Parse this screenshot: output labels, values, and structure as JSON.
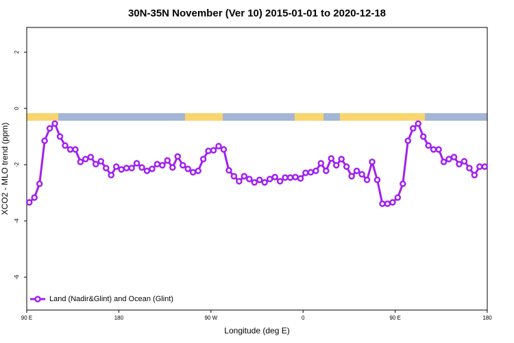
{
  "chart_data": {
    "type": "line",
    "title": "30N-35N November (Ver 10)   2015-01-01 to 2020-12-18",
    "x_label": "Longitude (deg E)",
    "y_label": "XCO2 - MLO trend (ppm)",
    "xlim": [
      90,
      540
    ],
    "ylim": [
      -7.17,
      2.88
    ],
    "xticks": [
      {
        "value": 90,
        "label": "90 E"
      },
      {
        "value": 180,
        "label": "180"
      },
      {
        "value": 270,
        "label": "90 W"
      },
      {
        "value": 360,
        "label": "0"
      },
      {
        "value": 450,
        "label": "90 E"
      },
      {
        "value": 540,
        "label": "180"
      }
    ],
    "yticks": [
      2,
      0,
      -2,
      -4,
      -6
    ],
    "legend": "bottomleft",
    "x": [
      92.5,
      97.5,
      102.5,
      107.5,
      112.5,
      117.5,
      122.5,
      127.5,
      132.5,
      137.5,
      142.5,
      147.5,
      152.5,
      157.5,
      162.5,
      167.5,
      172.5,
      177.5,
      182.5,
      187.5,
      192.5,
      197.5,
      202.5,
      207.5,
      212.5,
      217.5,
      222.5,
      227.5,
      232.5,
      237.5,
      242.5,
      247.5,
      252.5,
      257.5,
      262.5,
      267.5,
      272.5,
      277.5,
      282.5,
      287.5,
      292.5,
      297.5,
      302.5,
      307.5,
      312.5,
      317.5,
      322.5,
      327.5,
      332.5,
      337.5,
      342.5,
      347.5,
      352.5,
      357.5,
      362.5,
      367.5,
      372.5,
      377.5,
      382.5,
      387.5,
      392.5,
      397.5,
      402.5,
      407.5,
      412.5,
      417.5,
      422.5,
      427.5,
      432.5,
      437.5,
      442.5,
      447.5,
      452.5,
      457.5,
      462.5,
      467.5,
      472.5,
      477.5,
      482.5,
      487.5,
      492.5,
      497.5,
      502.5,
      507.5,
      512.5,
      517.5,
      522.5,
      527.5,
      532.5,
      537.5
    ],
    "series": [
      {
        "name": "Land (Nadir&Glint) and Ocean (Glint)",
        "color": "#a020f0",
        "values": [
          -3.34,
          -3.17,
          -2.68,
          -1.15,
          -0.71,
          -0.54,
          -1.0,
          -1.32,
          -1.46,
          -1.46,
          -1.9,
          -1.8,
          -1.73,
          -1.98,
          -1.88,
          -2.12,
          -2.37,
          -2.07,
          -2.17,
          -2.12,
          -2.12,
          -1.95,
          -2.1,
          -2.22,
          -2.15,
          -1.98,
          -2.02,
          -1.85,
          -2.1,
          -1.71,
          -2.02,
          -2.15,
          -2.27,
          -2.22,
          -1.8,
          -1.51,
          -1.49,
          -1.34,
          -1.46,
          -2.2,
          -2.41,
          -2.59,
          -2.41,
          -2.51,
          -2.63,
          -2.54,
          -2.63,
          -2.51,
          -2.44,
          -2.59,
          -2.46,
          -2.46,
          -2.44,
          -2.49,
          -2.29,
          -2.27,
          -2.22,
          -1.95,
          -2.22,
          -1.78,
          -2.02,
          -1.8,
          -2.07,
          -2.41,
          -2.22,
          -2.34,
          -2.54,
          -1.9,
          -2.54,
          -3.39,
          -3.39,
          -3.34,
          -3.17,
          -2.68,
          -1.15,
          -0.71,
          -0.54,
          -1.0,
          -1.32,
          -1.46,
          -1.46,
          -1.9,
          -1.8,
          -1.73,
          -1.98,
          -1.88,
          -2.12,
          -2.37,
          -2.07,
          -2.07
        ]
      }
    ]
  }
}
